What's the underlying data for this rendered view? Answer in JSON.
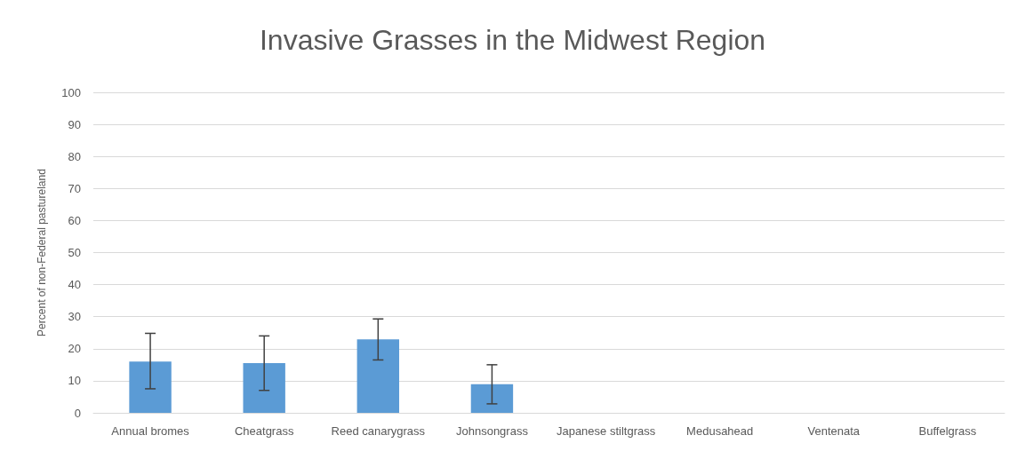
{
  "chart_data": {
    "type": "bar",
    "title": "Invasive Grasses in the Midwest Region",
    "ylabel": "Percent of non-Federal pastureland",
    "categories": [
      "Annual bromes",
      "Cheatgrass",
      "Reed canarygrass",
      "Johnsongrass",
      "Japanese stiltgrass",
      "Medusahead",
      "Ventenata",
      "Buffelgrass"
    ],
    "values": [
      16,
      15.5,
      22.9,
      8.9,
      0,
      0,
      0,
      0
    ],
    "errors": [
      [
        7.5,
        24.8
      ],
      [
        7,
        24
      ],
      [
        16.5,
        29.3
      ],
      [
        2.8,
        15
      ],
      null,
      null,
      null,
      null
    ],
    "color": "#5b9bd5",
    "ylim": [
      0,
      100
    ],
    "yticks": [
      0,
      10,
      20,
      30,
      40,
      50,
      60,
      70,
      80,
      90,
      100
    ],
    "grid": "y"
  }
}
